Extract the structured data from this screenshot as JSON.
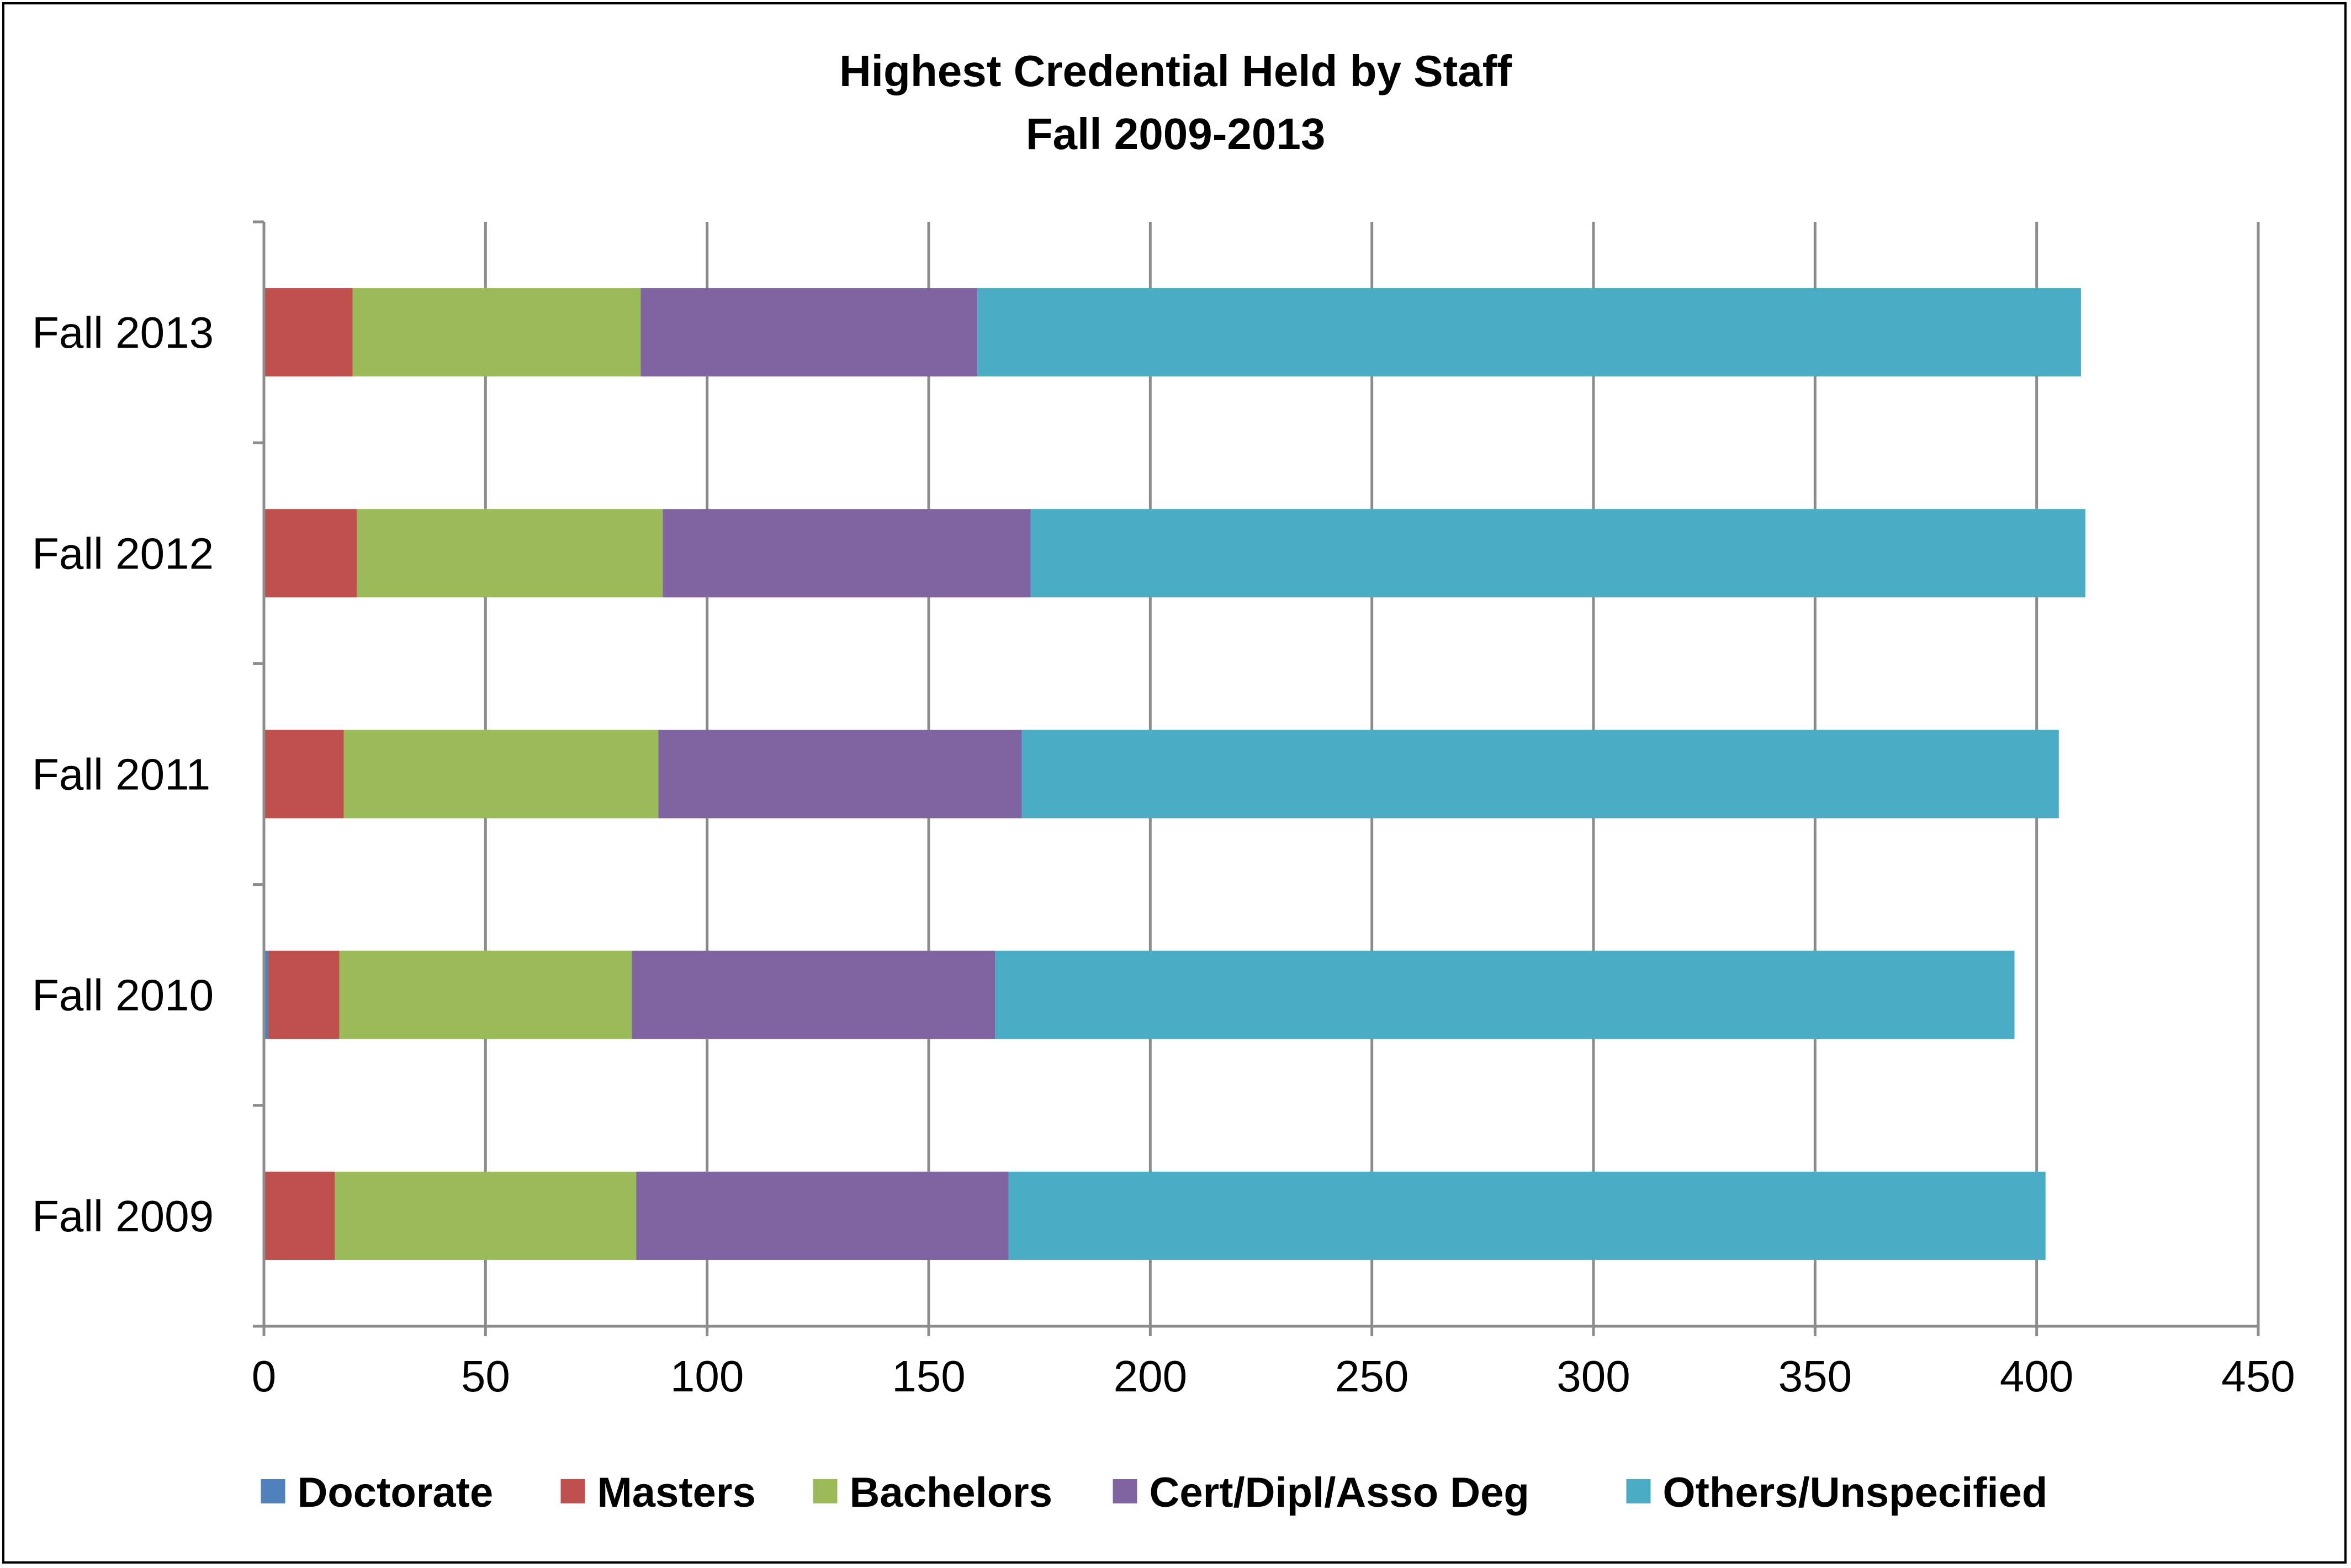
{
  "chart_data": {
    "type": "bar",
    "orientation": "horizontal",
    "stacked": true,
    "title": "Highest Credential Held by Staff",
    "subtitle": "Fall 2009-2013",
    "categories": [
      "Fall 2009",
      "Fall 2010",
      "Fall 2011",
      "Fall 2012",
      "Fall 2013"
    ],
    "series": [
      {
        "name": "Doctorate",
        "color": "#4F81BD",
        "values": [
          0,
          1,
          0,
          0,
          0
        ]
      },
      {
        "name": "Masters",
        "color": "#C0504D",
        "values": [
          16,
          16,
          18,
          21,
          20
        ]
      },
      {
        "name": "Bachelors",
        "color": "#9BBB59",
        "values": [
          68,
          66,
          71,
          69,
          65
        ]
      },
      {
        "name": "Cert/Dipl/Asso Deg",
        "color": "#8064A2",
        "values": [
          84,
          82,
          82,
          83,
          76
        ]
      },
      {
        "name": "Others/Unspecified",
        "color": "#4BACC6",
        "values": [
          234,
          230,
          234,
          238,
          249
        ]
      }
    ],
    "xlim": [
      0,
      450
    ],
    "xticks": [
      "0",
      "50",
      "100",
      "150",
      "200",
      "250",
      "300",
      "350",
      "400",
      "450"
    ],
    "grid": true,
    "legend_position": "bottom"
  }
}
